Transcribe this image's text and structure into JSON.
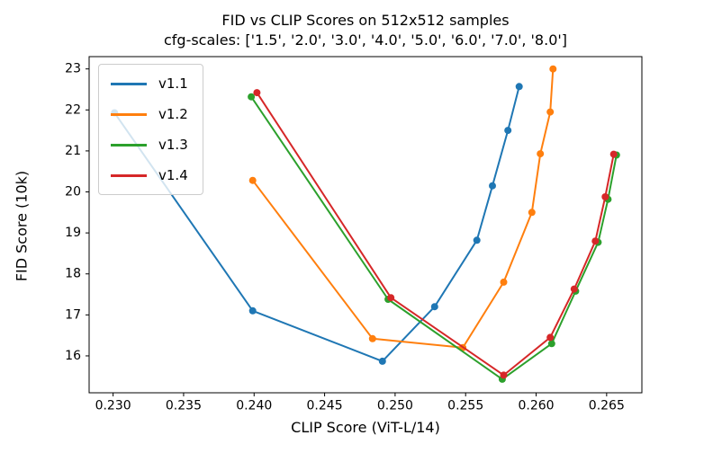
{
  "figure": {
    "title": "FID vs CLIP Scores on 512x512 samples",
    "subtitle": "cfg-scales: ['1.5', '2.0', '3.0', '4.0', '5.0', '6.0', '7.0', '8.0']"
  },
  "chart_data": {
    "type": "line",
    "title": "FID vs CLIP Scores on 512x512 samples",
    "subtitle": "cfg-scales: ['1.5', '2.0', '3.0', '4.0', '5.0', '6.0', '7.0', '8.0']",
    "xlabel": "CLIP Score (ViT-L/14)",
    "ylabel": "FID Score (10k)",
    "xlim": [
      0.2283,
      0.2675
    ],
    "ylim": [
      15.1,
      23.3
    ],
    "xticks": [
      0.23,
      0.235,
      0.24,
      0.245,
      0.25,
      0.255,
      0.26,
      0.265
    ],
    "xtick_labels": [
      "0.230",
      "0.235",
      "0.240",
      "0.245",
      "0.250",
      "0.255",
      "0.260",
      "0.265"
    ],
    "yticks": [
      16,
      17,
      18,
      19,
      20,
      21,
      22,
      23
    ],
    "ytick_labels": [
      "16",
      "17",
      "18",
      "19",
      "20",
      "21",
      "22",
      "23"
    ],
    "grid": false,
    "legend_position": "upper left",
    "cfg_scales": [
      "1.5",
      "2.0",
      "3.0",
      "4.0",
      "5.0",
      "6.0",
      "7.0",
      "8.0"
    ],
    "series": [
      {
        "name": "v1.1",
        "color": "#1f77b4",
        "points": [
          [
            0.2301,
            21.93
          ],
          [
            0.2399,
            17.1
          ],
          [
            0.2491,
            15.87
          ],
          [
            0.2528,
            17.2
          ],
          [
            0.2558,
            18.82
          ],
          [
            0.2569,
            20.15
          ],
          [
            0.258,
            21.5
          ],
          [
            0.2588,
            22.57
          ]
        ]
      },
      {
        "name": "v1.2",
        "color": "#ff7f0e",
        "points": [
          [
            0.2399,
            20.28
          ],
          [
            0.2484,
            16.42
          ],
          [
            0.2548,
            16.2
          ],
          [
            0.2577,
            17.8
          ],
          [
            0.2597,
            19.5
          ],
          [
            0.2603,
            20.93
          ],
          [
            0.261,
            21.95
          ],
          [
            0.2612,
            23.0
          ]
        ]
      },
      {
        "name": "v1.3",
        "color": "#2ca02c",
        "points": [
          [
            0.2398,
            22.32
          ],
          [
            0.2495,
            17.38
          ],
          [
            0.2576,
            15.43
          ],
          [
            0.2611,
            16.3
          ],
          [
            0.2628,
            17.58
          ],
          [
            0.2644,
            18.77
          ],
          [
            0.2651,
            19.82
          ],
          [
            0.2657,
            20.9
          ]
        ]
      },
      {
        "name": "v1.4",
        "color": "#d62728",
        "points": [
          [
            0.2402,
            22.42
          ],
          [
            0.2497,
            17.42
          ],
          [
            0.2577,
            15.53
          ],
          [
            0.261,
            16.45
          ],
          [
            0.2627,
            17.63
          ],
          [
            0.2642,
            18.8
          ],
          [
            0.2649,
            19.88
          ],
          [
            0.2655,
            20.92
          ]
        ]
      }
    ]
  }
}
